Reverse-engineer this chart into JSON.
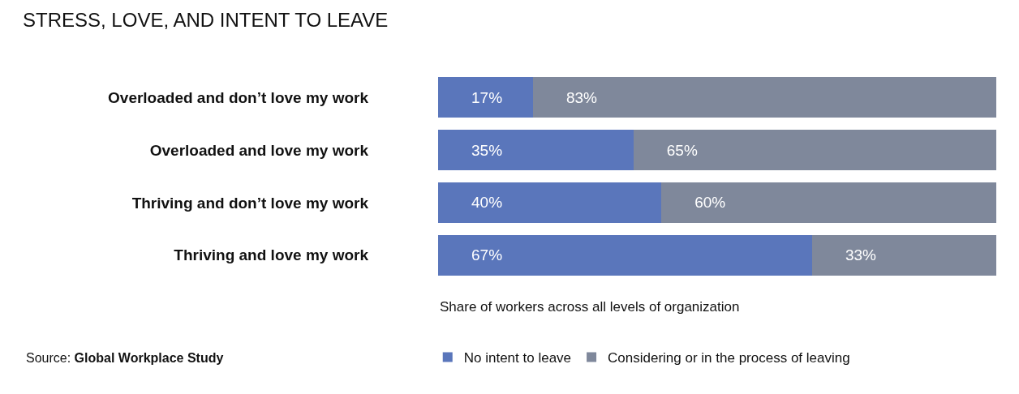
{
  "chart_data": {
    "type": "bar",
    "orientation": "horizontal",
    "stacked": true,
    "title": "STRESS, LOVE, AND INTENT TO LEAVE",
    "xlabel": "Share of workers across all levels of organization",
    "categories": [
      "Overloaded and don’t love my work",
      "Overloaded and love my work",
      "Thriving and don’t love my work",
      "Thriving and love my work"
    ],
    "series": [
      {
        "name": "No intent to leave",
        "color": "#5a76bb",
        "values": [
          17,
          35,
          40,
          67
        ],
        "value_labels": [
          "17%",
          "35%",
          "40%",
          "67%"
        ]
      },
      {
        "name": "Considering or in the process of leaving",
        "color": "#7f889b",
        "values": [
          83,
          65,
          60,
          33
        ],
        "value_labels": [
          "83%",
          "65%",
          "60%",
          "33%"
        ]
      }
    ],
    "xlim": [
      0,
      100
    ],
    "tick_labels": "y",
    "legend": "bottom",
    "annotations": [
      "Source: **Global Workplace Study**"
    ]
  }
}
